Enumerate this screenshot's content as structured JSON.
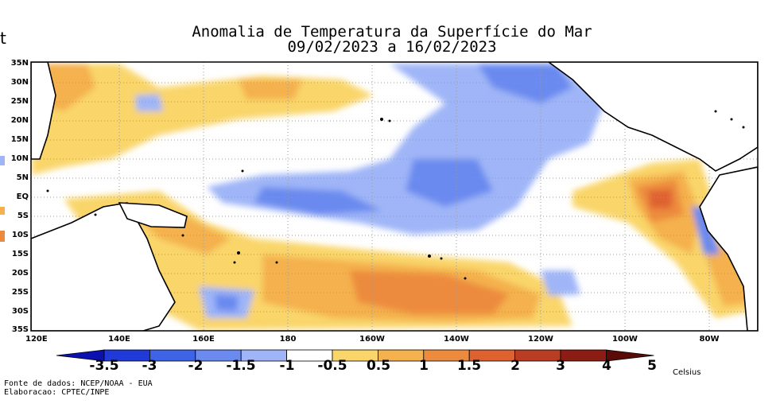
{
  "title": {
    "line1": "Anomalia de Temperatura da Superfície do Mar",
    "line2": "09/02/2023 a 16/02/2023"
  },
  "lat_labels": [
    "35N",
    "30N",
    "25N",
    "20N",
    "15N",
    "10N",
    "5N",
    "EQ",
    "5S",
    "10S",
    "15S",
    "20S",
    "25S",
    "30S",
    "35S"
  ],
  "lon_labels": [
    "120E",
    "140E",
    "160E",
    "180",
    "160W",
    "140W",
    "120W",
    "100W",
    "80W"
  ],
  "colorbar": {
    "labels": [
      "-3.5",
      "-3",
      "-2",
      "-1.5",
      "-1",
      "-0.5",
      "0.5",
      "1",
      "1.5",
      "2",
      "3",
      "4",
      "5"
    ],
    "colors": [
      "#0b10b0",
      "#1f3ad6",
      "#3d63e6",
      "#6a8aef",
      "#9fb5f7",
      "#ffffff",
      "#f9d56a",
      "#f4b14e",
      "#ec8b3d",
      "#de6230",
      "#b93d22",
      "#8c1d15",
      "#5a0b08"
    ],
    "unit": "Celsius"
  },
  "credits": {
    "line1": "Fonte de dados: NCEP/NOAA - EUA",
    "line2": "Elaboracao: CPTEC/INPE"
  },
  "map": {
    "land_color": "#ffffff",
    "coast_color": "#000000",
    "grid": true
  }
}
